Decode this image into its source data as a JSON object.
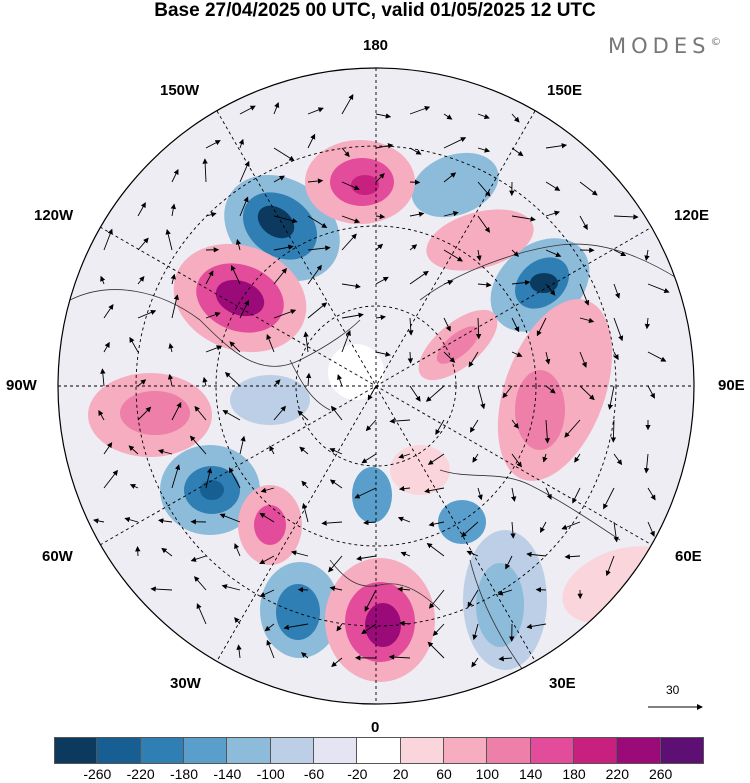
{
  "title": "Base 27/04/2025 00 UTC, valid 01/05/2025 12 UTC",
  "brand": "MODES",
  "brand_mark": "©",
  "lon_labels": {
    "top": "180",
    "bottom": "0",
    "left": "90W",
    "right": "90E",
    "upper_left": "150W",
    "upper_right": "150E",
    "mid_upper_left": "120W",
    "mid_upper_right": "120E",
    "mid_lower_left": "60W",
    "mid_lower_right": "60E",
    "lower_left": "30W",
    "lower_right": "30E"
  },
  "vector_scale": "30",
  "colorbar": {
    "colors": [
      "#0c3a5f",
      "#175f92",
      "#2f7fb5",
      "#5a9fcb",
      "#8dbbda",
      "#bccfe6",
      "#e4e4f3",
      "#ffffff",
      "#fad6dc",
      "#f6adc0",
      "#ed7fa8",
      "#e34c9a",
      "#c8207e",
      "#9a0a78",
      "#5e0f74"
    ],
    "ticks": [
      "-260",
      "-220",
      "-180",
      "-140",
      "-100",
      "-60",
      "-20",
      "20",
      "60",
      "100",
      "140",
      "180",
      "220",
      "260"
    ]
  }
}
